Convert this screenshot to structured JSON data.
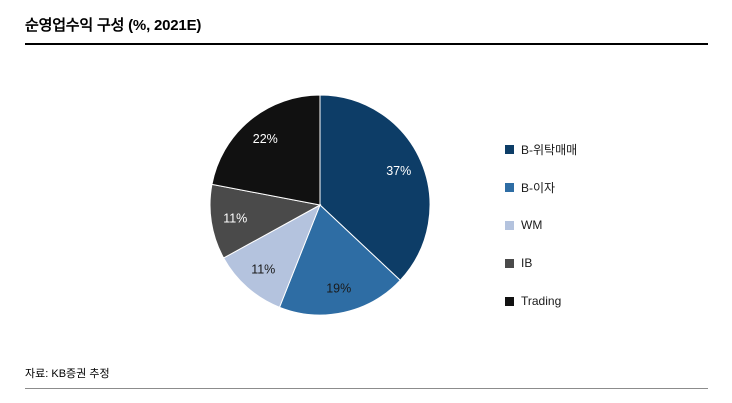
{
  "title": "순영업수익 구성 (%, 2021E)",
  "source": "자료: KB증권 추정",
  "chart_data": {
    "type": "pie",
    "title": "순영업수익 구성 (%, 2021E)",
    "legend_position": "right",
    "direction": "clockwise",
    "start_angle_deg": 0,
    "value_suffix": "%",
    "slices": [
      {
        "label": "B-위탁매매",
        "value": 37,
        "color": "#0d3d67",
        "label_color": "#ffffff"
      },
      {
        "label": "B-이자",
        "value": 19,
        "color": "#2e6da4",
        "label_color": "#1a1a1a"
      },
      {
        "label": "WM",
        "value": 11,
        "color": "#b4c3de",
        "label_color": "#1a1a1a"
      },
      {
        "label": "IB",
        "value": 11,
        "color": "#4a4a4a",
        "label_color": "#ffffff"
      },
      {
        "label": "Trading",
        "value": 22,
        "color": "#111111",
        "label_color": "#ffffff"
      }
    ]
  }
}
